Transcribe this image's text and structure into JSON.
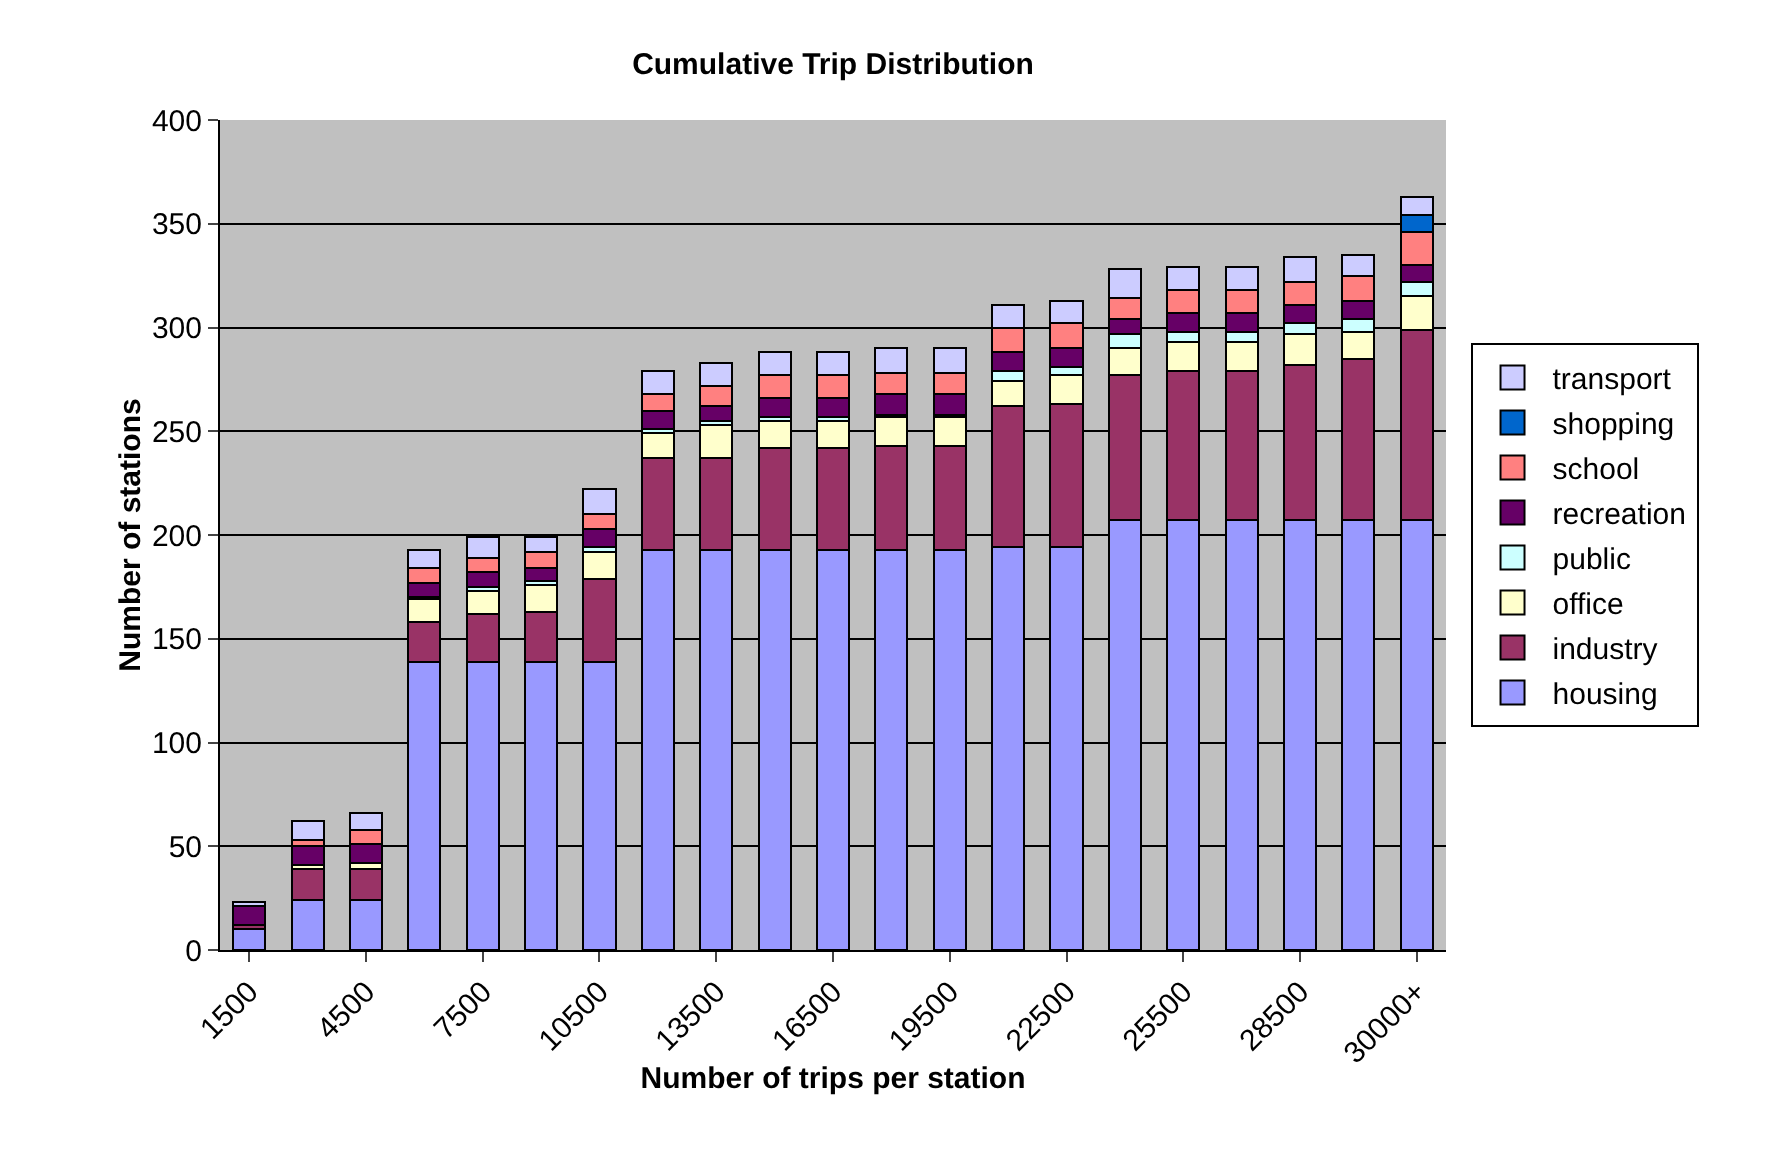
{
  "chart_data": {
    "type": "bar",
    "title": "Cumulative Trip Distribution",
    "xlabel": "Number of trips per station",
    "ylabel": "Number of stations",
    "categories": [
      "1500",
      null,
      "4500",
      null,
      "7500",
      null,
      "10500",
      null,
      "13500",
      null,
      "16500",
      null,
      "19500",
      null,
      "22500",
      null,
      "25500",
      null,
      "28500",
      null,
      "30000+"
    ],
    "stacked": true,
    "ylim": [
      0,
      400
    ],
    "yticks": [
      0,
      50,
      100,
      150,
      200,
      250,
      300,
      350,
      400
    ],
    "grid": "y",
    "legend": "right",
    "series": [
      {
        "name": "housing",
        "color": "#9999ff",
        "values": [
          10,
          24,
          24,
          139,
          139,
          139,
          139,
          193,
          193,
          193,
          193,
          193,
          193,
          194,
          194,
          207,
          207,
          207,
          207,
          207,
          207
        ]
      },
      {
        "name": "industry",
        "color": "#993366",
        "values": [
          2,
          15,
          15,
          19,
          23,
          24,
          40,
          44,
          44,
          49,
          49,
          50,
          50,
          68,
          69,
          70,
          72,
          72,
          75,
          78,
          92
        ]
      },
      {
        "name": "office",
        "color": "#ffffcc",
        "values": [
          0,
          2,
          3,
          11,
          11,
          13,
          13,
          12,
          16,
          13,
          13,
          14,
          14,
          12,
          14,
          13,
          14,
          14,
          15,
          13,
          16
        ]
      },
      {
        "name": "public",
        "color": "#ccffff",
        "values": [
          0,
          0,
          0,
          1,
          2,
          2,
          2,
          2,
          2,
          2,
          2,
          1,
          1,
          5,
          4,
          7,
          5,
          5,
          5,
          6,
          7
        ]
      },
      {
        "name": "recreation",
        "color": "#660066",
        "values": [
          9,
          9,
          9,
          7,
          7,
          6,
          9,
          9,
          7,
          9,
          9,
          10,
          10,
          9,
          9,
          7,
          9,
          9,
          9,
          9,
          8
        ]
      },
      {
        "name": "school",
        "color": "#ff8080",
        "values": [
          0,
          3,
          7,
          7,
          7,
          8,
          7,
          8,
          10,
          11,
          11,
          10,
          10,
          12,
          12,
          10,
          11,
          11,
          11,
          12,
          16
        ]
      },
      {
        "name": "shopping",
        "color": "#0066cc",
        "values": [
          0,
          0,
          0,
          0,
          0,
          0,
          0,
          0,
          0,
          0,
          0,
          0,
          0,
          0,
          0,
          0,
          0,
          0,
          0,
          0,
          8
        ]
      },
      {
        "name": "transport",
        "color": "#ccccff",
        "values": [
          2,
          9,
          8,
          9,
          10,
          7,
          12,
          11,
          11,
          11,
          11,
          12,
          12,
          11,
          11,
          14,
          11,
          11,
          12,
          10,
          9
        ]
      }
    ]
  }
}
